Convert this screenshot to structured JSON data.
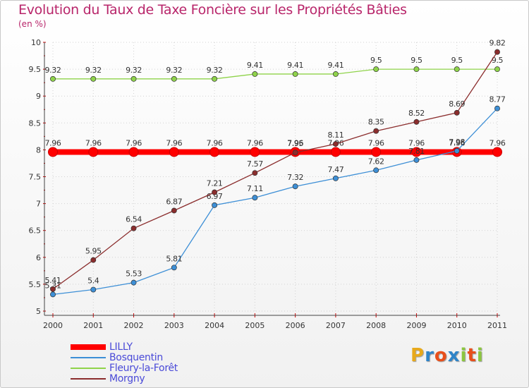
{
  "title": "Evolution du Taux de Taxe Foncière sur les Propriétés Bâties",
  "unit": "(en %)",
  "logo": {
    "letters": [
      "P",
      "r",
      "o",
      "x",
      "i",
      "t",
      "i"
    ],
    "colors": [
      "#e8a91b",
      "#2f84c8",
      "#e84f1b",
      "#2f84c8",
      "#8cc63f",
      "#e84f1b",
      "#8cc63f"
    ]
  },
  "chart_data": {
    "type": "line",
    "title": "Evolution du Taux de Taxe Foncière sur les Propriétés Bâties",
    "ylabel": "(en %)",
    "xlabel": "",
    "x": [
      "2000",
      "2001",
      "2002",
      "2003",
      "2004",
      "2005",
      "2006",
      "2007",
      "2008",
      "2009",
      "2010",
      "2011"
    ],
    "ylim": [
      5,
      10
    ],
    "yticks": [
      "5",
      "5.5",
      "6",
      "6.5",
      "7",
      "7.5",
      "8",
      "8.5",
      "9",
      "9.5",
      "10"
    ],
    "grid": true,
    "legend_position": "bottom-left",
    "series": [
      {
        "name": "LILLY",
        "color": "#ff0000",
        "values": [
          7.96,
          7.96,
          7.96,
          7.96,
          7.96,
          7.96,
          7.96,
          7.96,
          7.96,
          7.96,
          7.96,
          7.96
        ],
        "labels": [
          "7.96",
          "7.96",
          "7.96",
          "7.96",
          "7.96",
          "7.96",
          "7.96",
          "7.96",
          "7.96",
          "7.96",
          "7.96",
          "7.96"
        ]
      },
      {
        "name": "Bosquentin",
        "color": "#3d8fd6",
        "values": [
          5.31,
          5.4,
          5.53,
          5.81,
          6.97,
          7.11,
          7.32,
          7.47,
          7.62,
          7.81,
          7.98,
          8.77
        ],
        "labels": [
          "5.31",
          "5.4",
          "5.53",
          "5.81",
          "6.97",
          "7.11",
          "7.32",
          "7.47",
          "7.62",
          "7.81",
          "7.98",
          "8.77"
        ]
      },
      {
        "name": "Fleury-la-Forêt",
        "color": "#8fd34a",
        "values": [
          9.32,
          9.32,
          9.32,
          9.32,
          9.32,
          9.41,
          9.41,
          9.41,
          9.5,
          9.5,
          9.5,
          9.5
        ],
        "labels": [
          "9.32",
          "9.32",
          "9.32",
          "9.32",
          "9.32",
          "9.41",
          "9.41",
          "9.41",
          "9.5",
          "9.5",
          "9.5",
          "9.5"
        ]
      },
      {
        "name": "Morgny",
        "color": "#8b2d2d",
        "values": [
          5.41,
          5.95,
          6.54,
          6.87,
          7.21,
          7.57,
          7.95,
          8.11,
          8.35,
          8.52,
          8.69,
          9.82
        ],
        "labels": [
          "5.41",
          "5.95",
          "6.54",
          "6.87",
          "7.21",
          "7.57",
          "7.95",
          "8.11",
          "8.35",
          "8.52",
          "8.69",
          "9.82"
        ]
      }
    ]
  }
}
